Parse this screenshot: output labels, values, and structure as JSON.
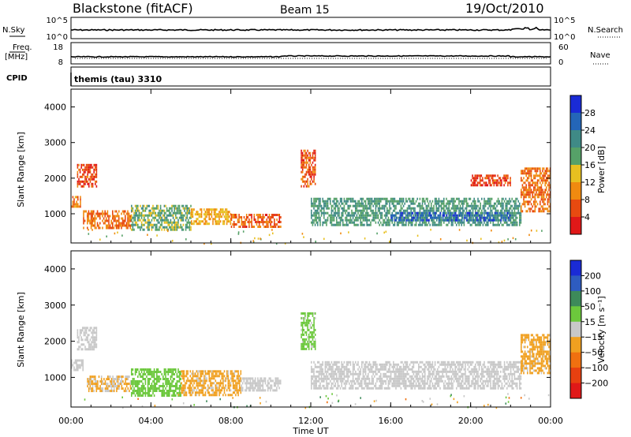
{
  "header": {
    "station": "Blackstone (fitACF)",
    "beam": "Beam 15",
    "date": "19/Oct/2010"
  },
  "strips": {
    "nsky_label": "N.Sky",
    "nsky_ticks": [
      "10^5",
      "10^0"
    ],
    "nsearch_label": "N.Search",
    "nsearch_ticks": [
      "10^5",
      "10^0"
    ],
    "freq_label": "Freq.",
    "freq_unit": "[MHz]",
    "freq_ticks": [
      "18",
      "8"
    ],
    "nave_label": "Nave",
    "nave_ticks": [
      "60",
      "0"
    ],
    "cpid_label": "CPID",
    "cpid_value": "themis (tau) 3310"
  },
  "x_axis": {
    "label": "Time UT",
    "ticks": [
      "00:00",
      "04:00",
      "08:00",
      "12:00",
      "16:00",
      "20:00",
      "00:00"
    ]
  },
  "colors": {
    "power_scale": [
      "#1a2bd6",
      "#2466b8",
      "#3f8a86",
      "#56a168",
      "#e8c020",
      "#f08a10",
      "#e84a10",
      "#e01818"
    ],
    "velocity_scale": [
      "#1a2bd6",
      "#2e5cc0",
      "#3d8a5a",
      "#6cc83c",
      "#c8c8c8",
      "#f0a020",
      "#f07010",
      "#e84010",
      "#e01818"
    ]
  },
  "chart_data": [
    {
      "type": "heatmap",
      "panel": "power",
      "ylabel": "Slant Range [km]",
      "yticks": [
        "4000",
        "3000",
        "2000",
        "1000"
      ],
      "ylim": [
        180,
        4500
      ],
      "xlim": [
        0,
        24
      ],
      "colorbar_label": "Power [dB]",
      "colorbar_ticks": [
        "28",
        "24",
        "20",
        "16",
        "12",
        "8",
        "4"
      ],
      "colorbar_range": [
        0,
        32
      ],
      "regions": [
        {
          "t": [
            0.0,
            0.5
          ],
          "r": [
            1200,
            1500
          ],
          "level": 10
        },
        {
          "t": [
            0.3,
            1.3
          ],
          "r": [
            1800,
            2400
          ],
          "level": 5
        },
        {
          "t": [
            0.6,
            3.0
          ],
          "r": [
            600,
            1100
          ],
          "level": 8
        },
        {
          "t": [
            3.0,
            6.0
          ],
          "r": [
            550,
            1250
          ],
          "level": 18
        },
        {
          "t": [
            6.0,
            8.0
          ],
          "r": [
            700,
            1150
          ],
          "level": 12
        },
        {
          "t": [
            8.0,
            10.5
          ],
          "r": [
            650,
            1000
          ],
          "level": 7
        },
        {
          "t": [
            11.5,
            12.2
          ],
          "r": [
            1800,
            2800
          ],
          "level": 6
        },
        {
          "t": [
            12.0,
            22.5
          ],
          "r": [
            700,
            1450
          ],
          "level": 20
        },
        {
          "t": [
            16.0,
            22.0
          ],
          "r": [
            800,
            1050
          ],
          "level": 26
        },
        {
          "t": [
            22.5,
            24.0
          ],
          "r": [
            1100,
            2300
          ],
          "level": 8
        },
        {
          "t": [
            20.0,
            22.0
          ],
          "r": [
            1800,
            2100
          ],
          "level": 5
        }
      ]
    },
    {
      "type": "heatmap",
      "panel": "velocity",
      "ylabel": "Slant Range [km]",
      "yticks": [
        "4000",
        "3000",
        "2000",
        "1000"
      ],
      "ylim": [
        180,
        4500
      ],
      "xlim": [
        0,
        24
      ],
      "colorbar_label": "Velocity [m s⁻¹]",
      "colorbar_ticks": [
        "200",
        "100",
        "50",
        "15",
        "−15",
        "−50",
        "−100",
        "−200"
      ],
      "colorbar_range": [
        -250,
        250
      ],
      "regions": [
        {
          "t": [
            0.0,
            0.6
          ],
          "r": [
            1200,
            1500
          ],
          "level": 0
        },
        {
          "t": [
            0.3,
            1.3
          ],
          "r": [
            1800,
            2400
          ],
          "level": 0
        },
        {
          "t": [
            0.8,
            3.0
          ],
          "r": [
            650,
            1050
          ],
          "level": -30
        },
        {
          "t": [
            3.0,
            5.5
          ],
          "r": [
            500,
            1250
          ],
          "level": 45
        },
        {
          "t": [
            5.5,
            8.5
          ],
          "r": [
            500,
            1200
          ],
          "level": -40
        },
        {
          "t": [
            8.5,
            10.5
          ],
          "r": [
            650,
            1000
          ],
          "level": 0
        },
        {
          "t": [
            11.5,
            12.2
          ],
          "r": [
            1800,
            2800
          ],
          "level": 40
        },
        {
          "t": [
            12.0,
            22.5
          ],
          "r": [
            700,
            1450
          ],
          "level": 0
        },
        {
          "t": [
            22.5,
            24.0
          ],
          "r": [
            1100,
            2200
          ],
          "level": -40
        }
      ]
    }
  ]
}
